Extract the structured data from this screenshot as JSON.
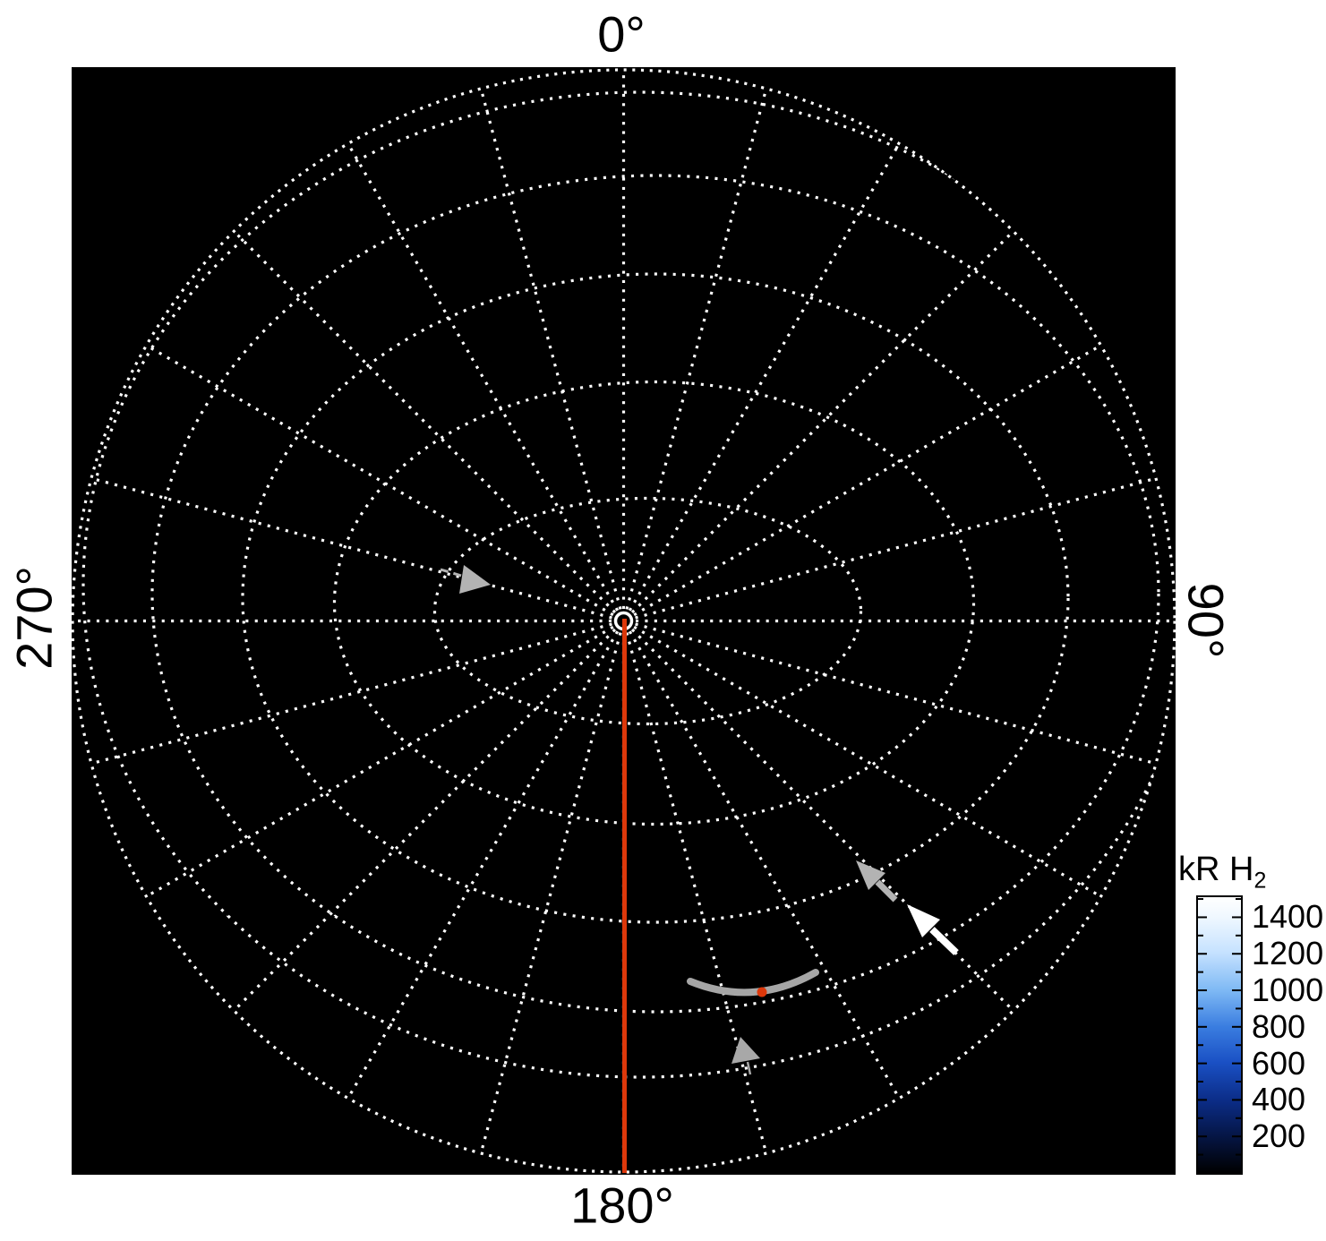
{
  "figure": {
    "description": "Polar projection map of auroral H2 emission on black background with dotted latitude/longitude grid",
    "angle_labels": {
      "top": "0°",
      "right": "90°",
      "bottom": "180°",
      "left": "270°"
    }
  },
  "colorbar": {
    "title": "kR H",
    "title_subscript": "2",
    "ticks": [
      "1400",
      "1200",
      "1000",
      "800",
      "600",
      "400",
      "200"
    ],
    "tick_values": [
      1400,
      1200,
      1000,
      800,
      600,
      400,
      200
    ],
    "minor_tick_step": 100,
    "scale_top_value": 1510,
    "scale_bottom_value": 0
  },
  "colors": {
    "page_background": "#ffffff",
    "plot_background": "#000000",
    "grid_dots": "#ffffff",
    "meridian_line_red": "#dd380b",
    "footprint_dot_red": "#dd380b",
    "arrow_gray": "#b3b3b3",
    "arrowhead_gray": "#a8a8a8",
    "arrow_white": "#ffffff",
    "arc_gray": "#a6a6a6",
    "center_ring_white": "#ffffff",
    "label_text": "#000000"
  },
  "chart_data": {
    "type": "heatmap",
    "subtype": "polar planetary emission map, oblique view of pole",
    "title": "",
    "angular_tick_labels": [
      "0°",
      "90°",
      "180°",
      "270°"
    ],
    "angular_direction": "clockwise from top",
    "meridian_spacing_deg": 15,
    "meridian_count": 24,
    "latitude_circle_count": 6,
    "grid_style": "white dotted lines on black background",
    "map_values": "emission below color-scale minimum everywhere (rendered black) except annotated features",
    "colorbar": {
      "label": "kR H2",
      "tick_values": [
        200,
        400,
        600,
        800,
        1000,
        1200,
        1400
      ],
      "approx_range": [
        0,
        1500
      ],
      "colormap": "black -> dark navy -> blue -> light blue -> white",
      "gradient_stops": [
        {
          "pos": 0,
          "color": "#ffffff"
        },
        {
          "pos": 7,
          "color": "#f0f8ff"
        },
        {
          "pos": 20,
          "color": "#c6e2ff"
        },
        {
          "pos": 34,
          "color": "#7db8f4"
        },
        {
          "pos": 47,
          "color": "#3a7de0"
        },
        {
          "pos": 60,
          "color": "#1a50c4"
        },
        {
          "pos": 74,
          "color": "#0b2c86"
        },
        {
          "pos": 87,
          "color": "#051543"
        },
        {
          "pos": 100,
          "color": "#000000"
        }
      ],
      "position": "right of plot, lower half"
    },
    "annotations": [
      {
        "name": "red-meridian-line",
        "angle_deg": 180,
        "extent": "from pole (plot center) to outer edge",
        "color": "#dd380b"
      },
      {
        "name": "center-ring",
        "shape": "small white circle outline at pole"
      },
      {
        "name": "gray-inflow-arrow-west",
        "location_deg": 285,
        "points": "inward toward pole",
        "style": "thin dashed tail with solid gray head"
      },
      {
        "name": "gray-inflow-arrow-southeast",
        "location_deg": 135,
        "points": "inward toward pole",
        "style": "solid gray arrow"
      },
      {
        "name": "white-inflow-arrow-southeast",
        "location_deg": 135,
        "points": "inward toward pole",
        "style": "solid white arrow"
      },
      {
        "name": "gray-footprint-arc",
        "location": "lower right near 165° meridian",
        "style": "thick gray arc segment"
      },
      {
        "name": "red-footprint-dot",
        "location": "on gray arc",
        "color": "#dd380b"
      },
      {
        "name": "gray-arrowhead-south",
        "location_deg": 165,
        "points": "inward (up) along meridian",
        "style": "gray arrowhead with thin tail"
      }
    ]
  }
}
